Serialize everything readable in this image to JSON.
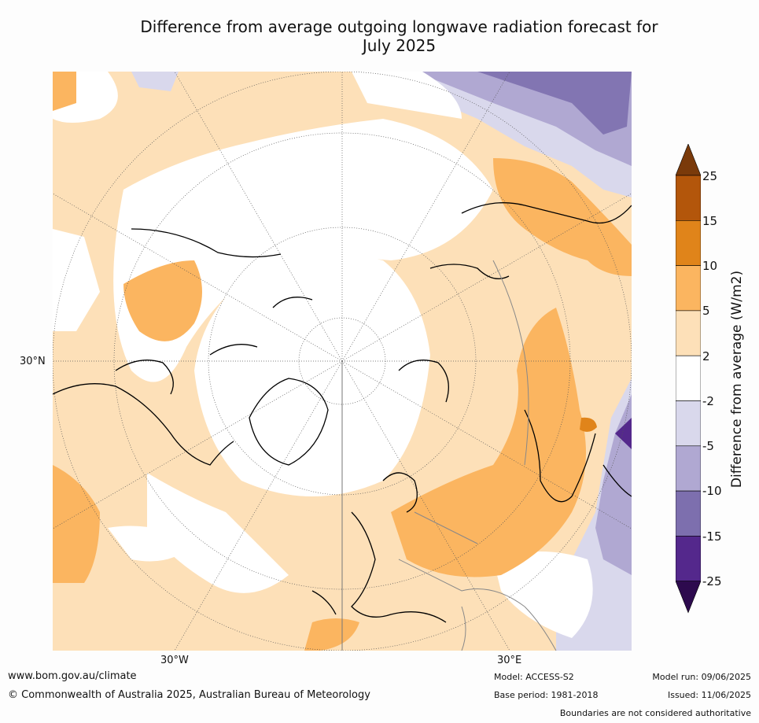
{
  "title_line1": "Difference from average outgoing longwave radiation forecast for",
  "title_line2": "July 2025",
  "map": {
    "lat_label": "30°N",
    "lon_labels": [
      "30°W",
      "30°E"
    ]
  },
  "colorbar": {
    "label": "Difference from average (W/m2)",
    "ticks": [
      "25",
      "15",
      "10",
      "5",
      "2",
      "-2",
      "-5",
      "-10",
      "-15",
      "-25"
    ],
    "colors": {
      "above_25": "#7a3a0a",
      "15_25": "#b3560b",
      "10_15": "#e0841a",
      "5_10": "#fbb560",
      "2_5": "#fde0b8",
      "neutral": "#ffffff",
      "m5_m2": "#d9d8ec",
      "m10_m5": "#b0a8d2",
      "m15_m10": "#7d6fae",
      "m25_m15": "#54288c",
      "below_m25": "#2d0a4e"
    }
  },
  "footer": {
    "website": "www.bom.gov.au/climate",
    "copyright": "© Commonwealth of Australia 2025, Australian Bureau of Meteorology",
    "model": "Model: ACCESS-S2",
    "base_period": "Base period: 1981-2018",
    "model_run": "Model run: 09/06/2025",
    "issued": "Issued: 11/06/2025",
    "disclaimer": "Boundaries are not considered authoritative"
  }
}
